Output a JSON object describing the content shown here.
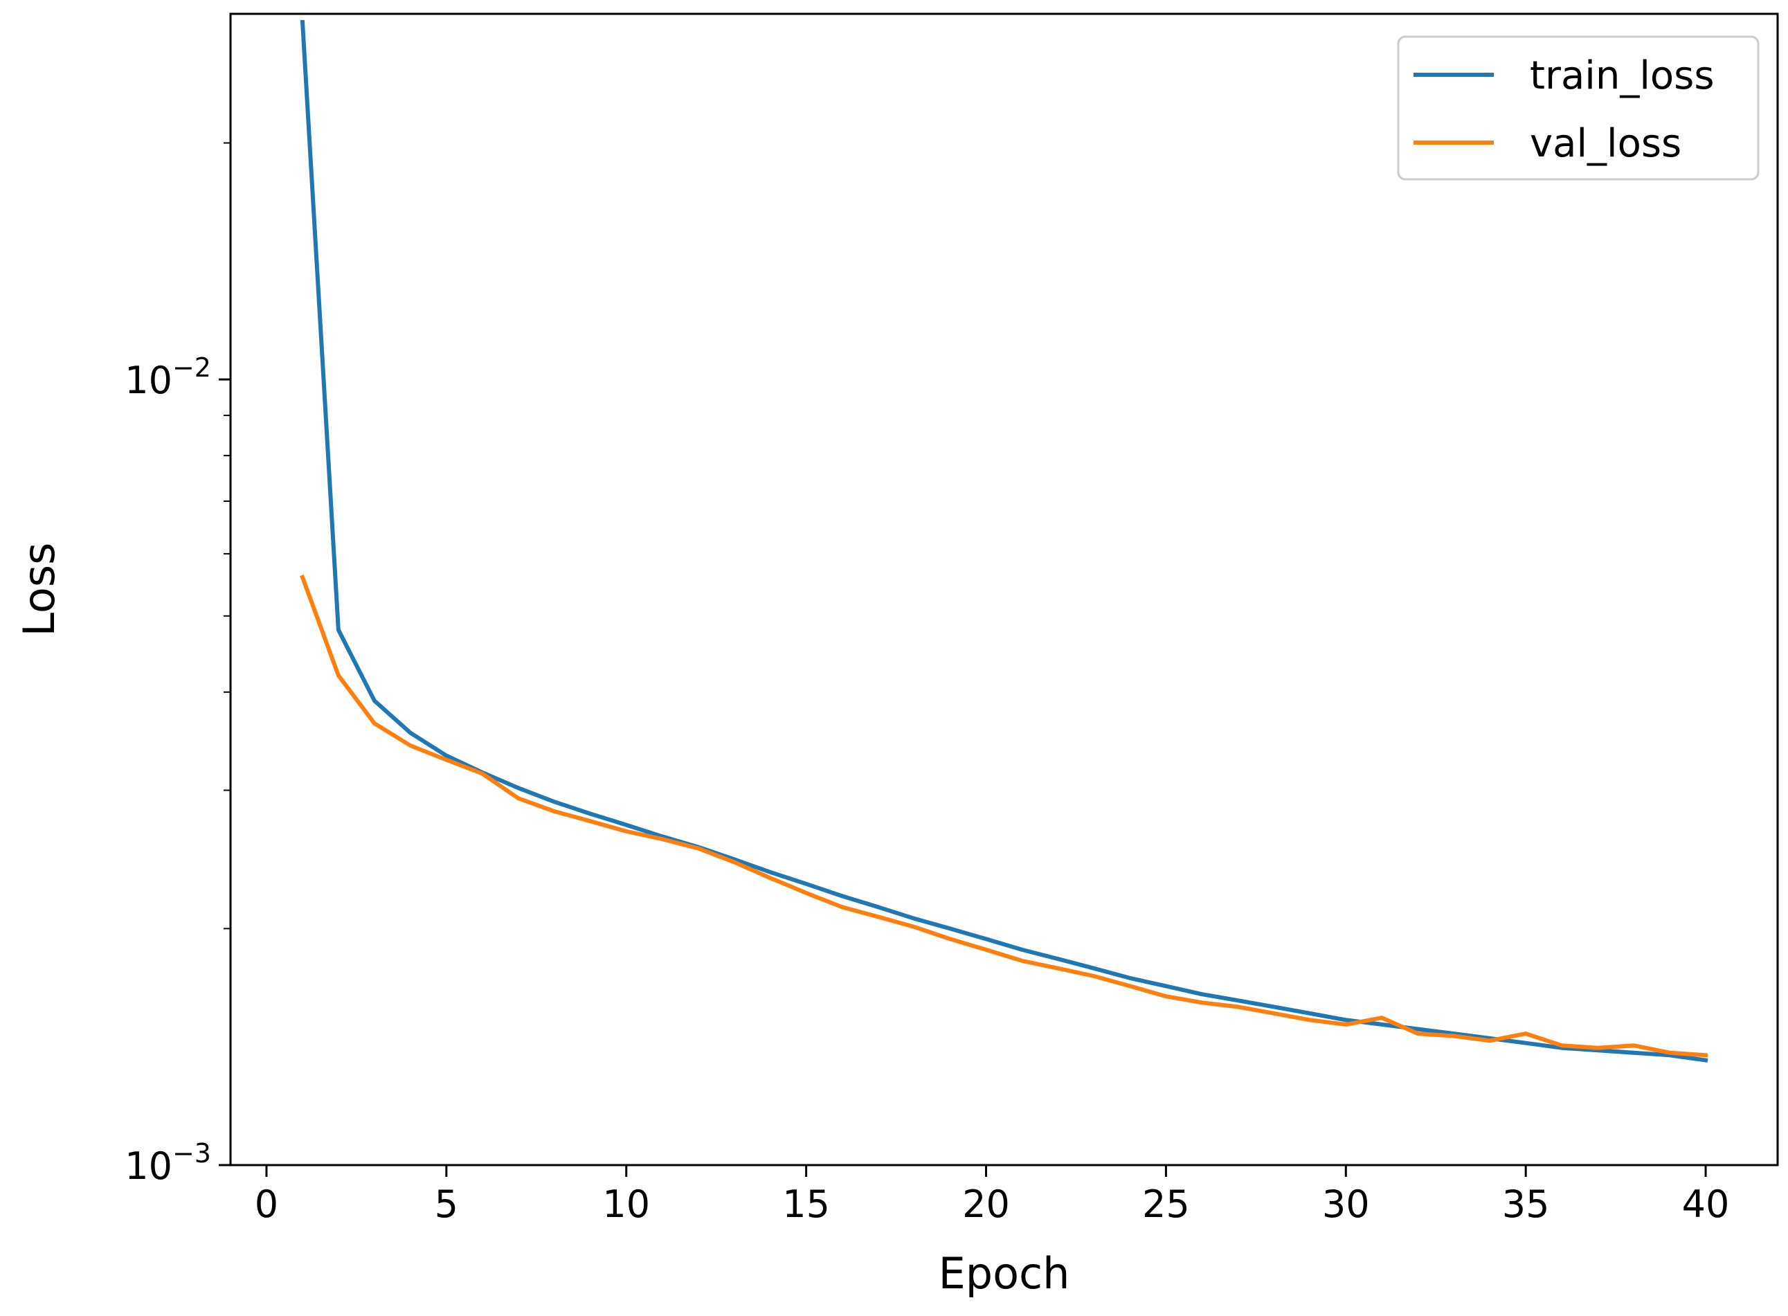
{
  "chart_data": {
    "type": "line",
    "xlabel": "Epoch",
    "ylabel": "Loss",
    "xlim": [
      -1,
      42
    ],
    "ylim": [
      0.001,
      0.0292
    ],
    "yscale": "log",
    "x_ticks": [
      0,
      5,
      10,
      15,
      20,
      25,
      30,
      35,
      40
    ],
    "y_ticks": [
      {
        "value": 0.001,
        "base": "10",
        "exp": "−3"
      },
      {
        "value": 0.01,
        "base": "10",
        "exp": "−2"
      }
    ],
    "legend_position": "top-right",
    "grid": false,
    "x": [
      1,
      2,
      3,
      4,
      5,
      6,
      7,
      8,
      9,
      10,
      11,
      12,
      13,
      14,
      15,
      16,
      17,
      18,
      19,
      20,
      21,
      22,
      23,
      24,
      25,
      26,
      27,
      28,
      29,
      30,
      31,
      32,
      33,
      34,
      35,
      36,
      37,
      38,
      39,
      40
    ],
    "series": [
      {
        "name": "train_loss",
        "color": "#1f77b4",
        "values": [
          0.0285,
          0.0048,
          0.0039,
          0.00355,
          0.00332,
          0.00316,
          0.00302,
          0.0029,
          0.0028,
          0.00271,
          0.00262,
          0.00254,
          0.00245,
          0.00236,
          0.00228,
          0.0022,
          0.00213,
          0.00206,
          0.002,
          0.00194,
          0.00188,
          0.00183,
          0.00178,
          0.00173,
          0.00169,
          0.00165,
          0.00162,
          0.00159,
          0.00156,
          0.00153,
          0.00151,
          0.00149,
          0.00147,
          0.00145,
          0.00143,
          0.00141,
          0.0014,
          0.00139,
          0.00138,
          0.00136
        ]
      },
      {
        "name": "val_loss",
        "color": "#ff7f0e",
        "values": [
          0.0056,
          0.0042,
          0.00365,
          0.00342,
          0.00328,
          0.00315,
          0.00293,
          0.00282,
          0.00274,
          0.00266,
          0.0026,
          0.00253,
          0.00243,
          0.00232,
          0.00222,
          0.00213,
          0.00207,
          0.00201,
          0.00194,
          0.00188,
          0.00182,
          0.00178,
          0.00174,
          0.00169,
          0.00164,
          0.00161,
          0.00159,
          0.00156,
          0.00153,
          0.00151,
          0.00154,
          0.00147,
          0.00146,
          0.00144,
          0.00147,
          0.00142,
          0.00141,
          0.00142,
          0.00139,
          0.00138
        ]
      }
    ]
  }
}
